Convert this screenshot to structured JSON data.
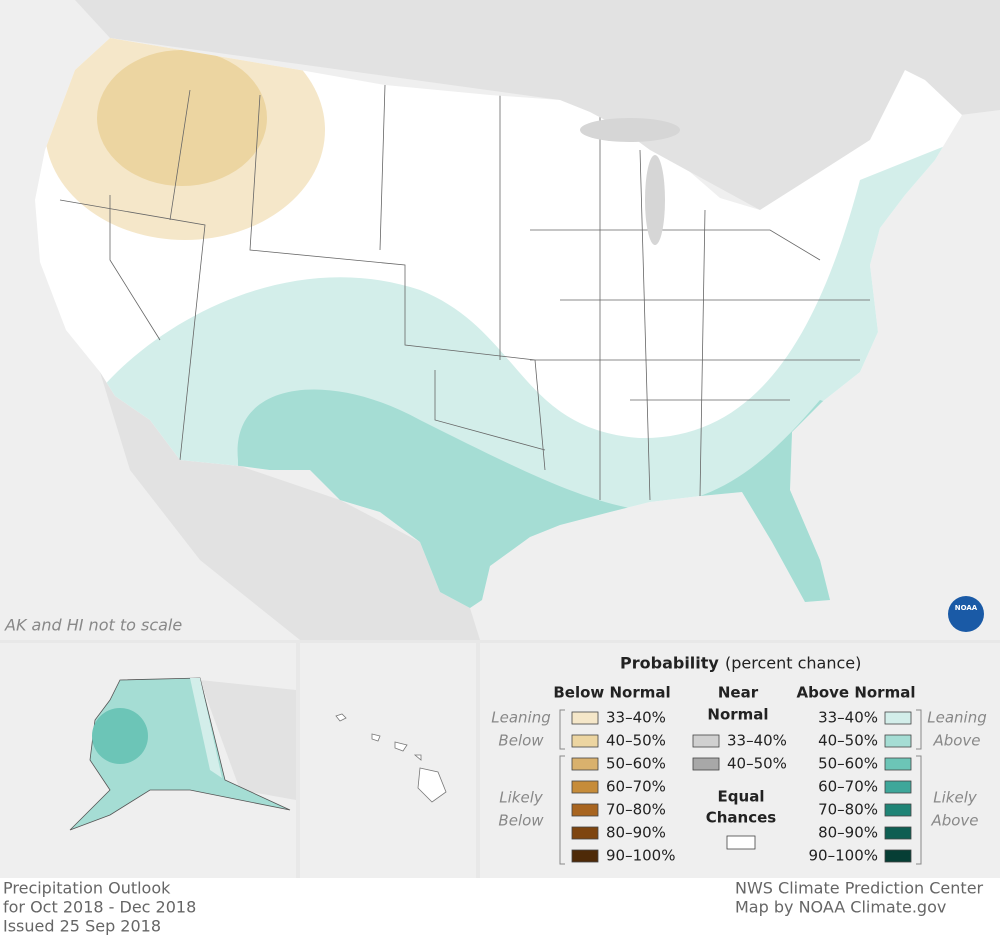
{
  "map_note": "AK and HI not to scale",
  "logo": "NOAA",
  "legend": {
    "title": "Probability",
    "subtitle": "(percent chance)",
    "below": {
      "heading": [
        "Below Normal"
      ],
      "leaning": [
        "Leaning",
        "Below"
      ],
      "likely": [
        "Likely",
        "Below"
      ],
      "items": [
        {
          "label": "33–40%",
          "color": "#f5e7c9"
        },
        {
          "label": "40–50%",
          "color": "#ecd5a1"
        },
        {
          "label": "50–60%",
          "color": "#d9b16d"
        },
        {
          "label": "60–70%",
          "color": "#c68c3a"
        },
        {
          "label": "70–80%",
          "color": "#a86520"
        },
        {
          "label": "80–90%",
          "color": "#7e4510"
        },
        {
          "label": "90–100%",
          "color": "#4e2a08"
        }
      ]
    },
    "near": {
      "heading": [
        "Near",
        "Normal"
      ],
      "items": [
        {
          "label": "33–40%",
          "color": "#d0d0d0"
        },
        {
          "label": "40–50%",
          "color": "#a8a8a8"
        }
      ]
    },
    "equal": {
      "heading": [
        "Equal",
        "Chances"
      ],
      "color": "#ffffff"
    },
    "above": {
      "heading": [
        "Above Normal"
      ],
      "leaning": [
        "Leaning",
        "Above"
      ],
      "likely": [
        "Likely",
        "Above"
      ],
      "items": [
        {
          "label": "33–40%",
          "color": "#d3eeea"
        },
        {
          "label": "40–50%",
          "color": "#a5ddd4"
        },
        {
          "label": "50–60%",
          "color": "#6cc5b7"
        },
        {
          "label": "60–70%",
          "color": "#3ea79a"
        },
        {
          "label": "70–80%",
          "color": "#1f8476"
        },
        {
          "label": "80–90%",
          "color": "#0e5e52"
        },
        {
          "label": "90–100%",
          "color": "#063e35"
        }
      ]
    }
  },
  "footer": {
    "left": [
      "Precipitation Outlook",
      "for Oct 2018 - Dec 2018",
      "Issued 25 Sep 2018"
    ],
    "right": [
      "NWS Climate Prediction Center",
      "Map by NOAA Climate.gov"
    ]
  }
}
